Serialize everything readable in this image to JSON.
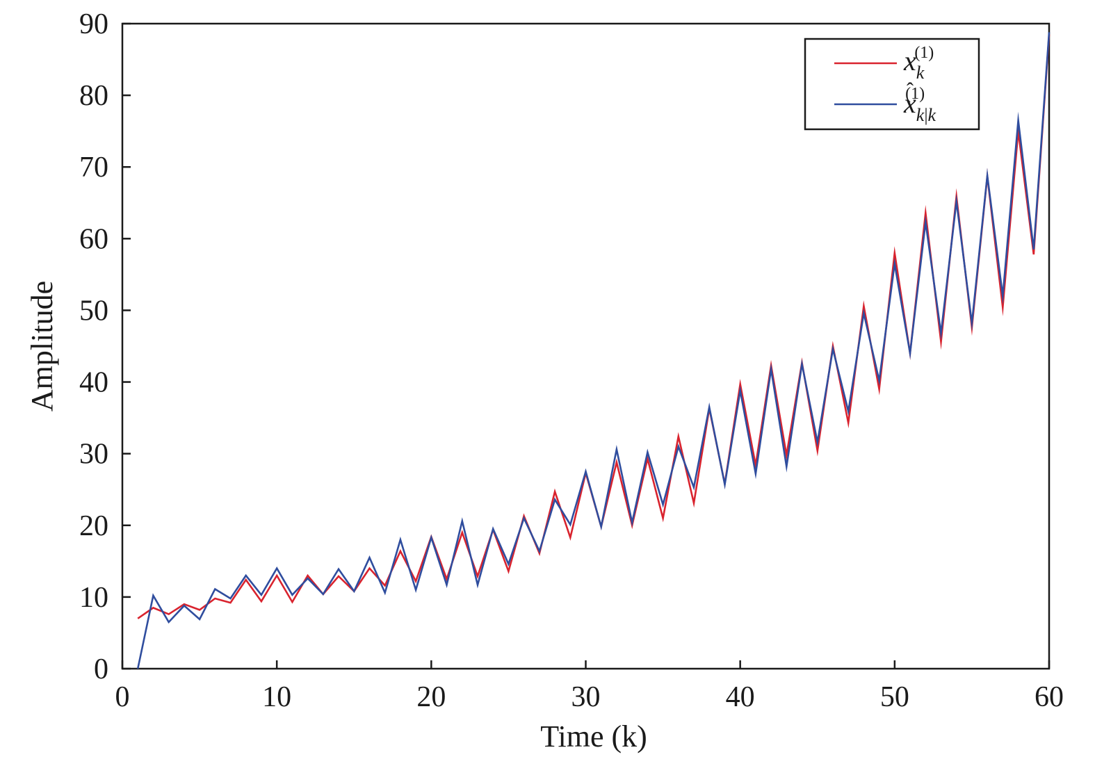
{
  "chart_data": {
    "type": "line",
    "xlabel": "Time (k)",
    "ylabel": "Amplitude",
    "xlim": [
      0,
      60
    ],
    "ylim": [
      0,
      90
    ],
    "xticks": [
      "0",
      "10",
      "20",
      "30",
      "40",
      "50",
      "60"
    ],
    "yticks": [
      "0",
      "10",
      "20",
      "30",
      "40",
      "50",
      "60",
      "70",
      "80",
      "90"
    ],
    "grid": false,
    "legend_position": "top-right",
    "series": [
      {
        "name": "x_k^(1)",
        "color": "#d9232e",
        "x": [
          1,
          2,
          3,
          4,
          5,
          6,
          7,
          8,
          9,
          10,
          11,
          12,
          13,
          14,
          15,
          16,
          17,
          18,
          19,
          20,
          21,
          22,
          23,
          24,
          25,
          26,
          27,
          28,
          29,
          30,
          31,
          32,
          33,
          34,
          35,
          36,
          37,
          38,
          39,
          40,
          41,
          42,
          43,
          44,
          45,
          46,
          47,
          48,
          49,
          50,
          51,
          52,
          53,
          54,
          55,
          56,
          57,
          58,
          59,
          60
        ],
        "values": [
          7.0,
          8.5,
          7.6,
          9.0,
          8.2,
          9.8,
          9.2,
          12.4,
          9.4,
          13.0,
          9.3,
          13.0,
          10.4,
          12.9,
          10.8,
          14.0,
          11.6,
          16.4,
          12.2,
          18.4,
          12.5,
          19.0,
          12.9,
          19.4,
          13.6,
          21.3,
          16.1,
          24.7,
          18.3,
          27.3,
          19.8,
          28.8,
          20.0,
          29.3,
          21.0,
          32.4,
          23.1,
          36.3,
          25.8,
          39.7,
          28.4,
          42.3,
          29.8,
          42.7,
          30.4,
          45.0,
          34.3,
          50.6,
          39.0,
          58.0,
          44.0,
          63.6,
          45.6,
          65.9,
          47.6,
          68.7,
          50.4,
          75.0,
          57.8,
          88.5
        ]
      },
      {
        "name": "x̂_{k|k}^(1)",
        "color": "#2f4d9e",
        "x": [
          1,
          2,
          3,
          4,
          5,
          6,
          7,
          8,
          9,
          10,
          11,
          12,
          13,
          14,
          15,
          16,
          17,
          18,
          19,
          20,
          21,
          22,
          23,
          24,
          25,
          26,
          27,
          28,
          29,
          30,
          31,
          32,
          33,
          34,
          35,
          36,
          37,
          38,
          39,
          40,
          41,
          42,
          43,
          44,
          45,
          46,
          47,
          48,
          49,
          50,
          51,
          52,
          53,
          54,
          55,
          56,
          57,
          58,
          59,
          60
        ],
        "values": [
          0.0,
          10.2,
          6.5,
          8.8,
          6.9,
          11.1,
          9.8,
          13.0,
          10.3,
          14.0,
          10.3,
          12.6,
          10.4,
          13.9,
          10.8,
          15.5,
          10.6,
          18.0,
          11.0,
          18.3,
          11.7,
          20.6,
          11.7,
          19.5,
          14.6,
          21.0,
          16.4,
          23.6,
          20.1,
          27.5,
          19.8,
          30.6,
          20.4,
          30.2,
          22.9,
          31.0,
          25.3,
          36.5,
          25.7,
          38.8,
          27.2,
          41.8,
          28.2,
          42.5,
          31.6,
          44.6,
          35.9,
          49.6,
          40.2,
          56.5,
          44.0,
          62.3,
          46.8,
          65.2,
          48.2,
          68.8,
          52.0,
          76.5,
          58.5,
          88.8
        ]
      }
    ]
  }
}
